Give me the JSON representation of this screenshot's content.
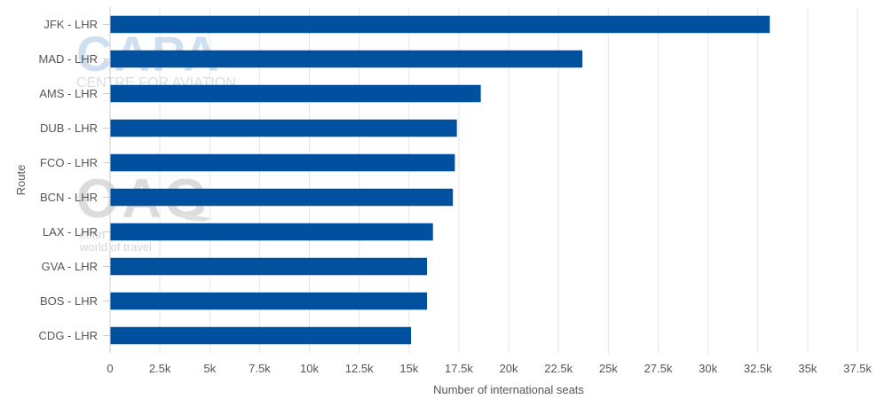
{
  "chart_data": {
    "type": "bar",
    "orientation": "horizontal",
    "categories": [
      "JFK - LHR",
      "MAD - LHR",
      "AMS - LHR",
      "DUB - LHR",
      "FCO - LHR",
      "BCN - LHR",
      "LAX - LHR",
      "GVA - LHR",
      "BOS - LHR",
      "CDG - LHR"
    ],
    "values": [
      33100,
      23700,
      18600,
      17400,
      17300,
      17200,
      16200,
      15900,
      15900,
      15100
    ],
    "xlabel": "Number of international seats",
    "ylabel": "Route",
    "xlim": [
      0,
      37500
    ],
    "xticks": [
      0,
      2500,
      5000,
      7500,
      10000,
      12500,
      15000,
      17500,
      20000,
      22500,
      25000,
      27500,
      30000,
      32500,
      35000,
      37500
    ],
    "xtick_labels": [
      "0",
      "2.5k",
      "5k",
      "7.5k",
      "10k",
      "12.5k",
      "15k",
      "17.5k",
      "20k",
      "22.5k",
      "25k",
      "27.5k",
      "30k",
      "32.5k",
      "35k",
      "37.5k"
    ],
    "grid": true,
    "bar_color": "#0050a0",
    "grid_color": "#e6e6e6"
  },
  "watermark": {
    "capa_logo": "CAPA",
    "capa_tagline": "CENTRE FOR AVIATION",
    "oag_logo": "OAG",
    "oag_tagline_1": "conn",
    "oag_tagline_2": "world of travel"
  }
}
